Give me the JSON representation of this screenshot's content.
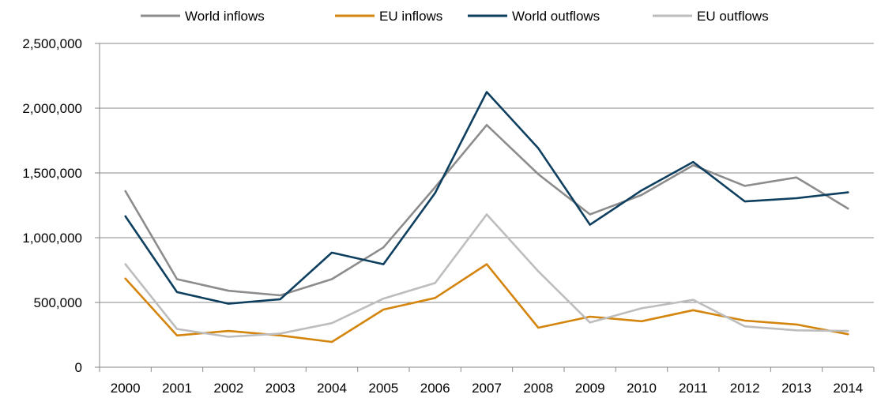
{
  "chart_data": {
    "type": "line",
    "x": [
      "2000",
      "2001",
      "2002",
      "2003",
      "2004",
      "2005",
      "2006",
      "2007",
      "2008",
      "2009",
      "2010",
      "2011",
      "2012",
      "2013",
      "2014"
    ],
    "ylim": [
      0,
      2500000
    ],
    "yticks": [
      0,
      500000,
      1000000,
      1500000,
      2000000,
      2500000
    ],
    "ytick_labels": [
      "0",
      "500,000",
      "1,000,000",
      "1,500,000",
      "2,000,000",
      "2,500,000"
    ],
    "grid": "horizontal",
    "legend_position": "top",
    "series": [
      {
        "name": "World inflows",
        "color": "#8c8c8c",
        "values": [
          1360000,
          680000,
          590000,
          555000,
          680000,
          925000,
          1390000,
          1870000,
          1490000,
          1180000,
          1330000,
          1560000,
          1400000,
          1465000,
          1225000
        ]
      },
      {
        "name": "EU inflows",
        "color": "#d4850e",
        "values": [
          685000,
          245000,
          280000,
          245000,
          195000,
          445000,
          535000,
          795000,
          305000,
          390000,
          355000,
          440000,
          360000,
          330000,
          255000
        ]
      },
      {
        "name": "World outflows",
        "color": "#0e3f5f",
        "values": [
          1165000,
          580000,
          490000,
          525000,
          885000,
          795000,
          1345000,
          2125000,
          1690000,
          1100000,
          1365000,
          1585000,
          1280000,
          1305000,
          1350000
        ]
      },
      {
        "name": "EU outflows",
        "color": "#bdbdbd",
        "values": [
          795000,
          295000,
          235000,
          260000,
          340000,
          530000,
          650000,
          1180000,
          740000,
          345000,
          455000,
          520000,
          315000,
          285000,
          280000
        ]
      }
    ]
  }
}
